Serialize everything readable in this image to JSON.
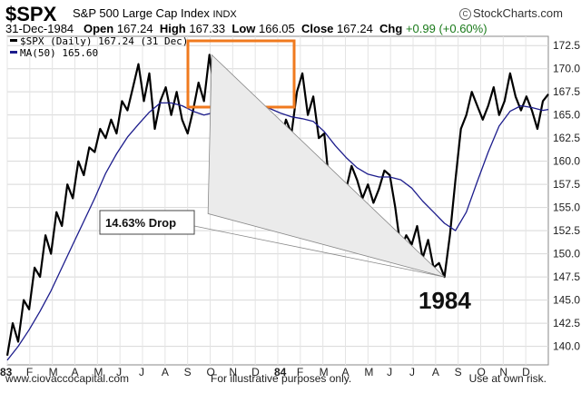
{
  "header": {
    "symbol": "$SPX",
    "name": "S&P 500 Large Cap Index",
    "exchange": "INDX",
    "brand": "StockCharts.com",
    "brand_icon": "copyright-icon",
    "date": "31-Dec-1984",
    "open_label": "Open",
    "open": "167.24",
    "high_label": "High",
    "high": "167.33",
    "low_label": "Low",
    "low": "166.05",
    "close_label": "Close",
    "close": "167.24",
    "chg_label": "Chg",
    "chg": "+0.99 (+0.60%)",
    "chg_color": "#1a7a1a"
  },
  "footer": {
    "left": "www.ciovaccocapital.com",
    "center": "For illustrative purposes only.",
    "right": "Use at own risk."
  },
  "chart_data": {
    "type": "line",
    "legend": [
      {
        "label": "$SPX (Daily) 167.24 (31 Dec)",
        "color": "#000000"
      },
      {
        "label": "MA(50) 165.60",
        "color": "#1c1c8c"
      }
    ],
    "y_ticks": [
      "172.5",
      "170.0",
      "167.5",
      "165.0",
      "162.5",
      "160.0",
      "157.5",
      "155.0",
      "152.5",
      "150.0",
      "147.5",
      "145.0",
      "142.5",
      "140.0"
    ],
    "ylim": [
      138.0,
      173.5
    ],
    "x_ticks": [
      "83",
      "F",
      "M",
      "A",
      "M",
      "J",
      "J",
      "A",
      "S",
      "O",
      "N",
      "D",
      "84",
      "F",
      "M",
      "A",
      "M",
      "J",
      "J",
      "A",
      "S",
      "O",
      "N",
      "D"
    ],
    "grid": true,
    "annotations": {
      "drop_label": "14.63% Drop",
      "year_label": "1984",
      "highlight_box_color": "#f07a1e"
    },
    "series": [
      {
        "name": "$SPX (Daily)",
        "color": "#000000",
        "x": [
          0,
          5,
          10,
          15,
          20,
          25,
          30,
          35,
          40,
          45,
          50,
          55,
          60,
          65,
          70,
          75,
          80,
          85,
          90,
          95,
          100,
          105,
          110,
          115,
          120,
          125,
          130,
          135,
          140,
          145,
          150,
          155,
          160,
          165,
          170,
          175,
          180,
          185,
          190,
          195,
          200,
          205,
          210,
          215,
          220,
          225,
          230,
          235,
          240,
          245,
          250,
          255,
          260,
          265,
          270,
          275,
          280,
          285,
          290,
          295,
          300,
          305,
          310,
          315,
          320,
          325,
          330,
          335,
          340,
          345,
          350,
          355,
          360,
          365,
          370,
          375,
          380,
          385,
          390,
          395,
          400,
          405,
          410,
          415,
          420,
          425,
          430,
          435,
          440,
          445,
          450,
          455,
          460,
          465,
          470,
          475,
          480,
          485,
          490,
          495
        ],
        "values": [
          139.0,
          142.5,
          140.5,
          145.0,
          144.0,
          148.5,
          147.5,
          152.0,
          150.0,
          154.5,
          153.0,
          157.5,
          156.0,
          160.0,
          158.5,
          161.5,
          161.0,
          163.5,
          162.5,
          164.5,
          163.0,
          166.5,
          165.5,
          168.0,
          170.5,
          166.5,
          169.5,
          163.5,
          166.5,
          168.0,
          165.0,
          167.5,
          164.5,
          163.0,
          165.5,
          168.5,
          166.5,
          171.5,
          167.0,
          169.5,
          166.0,
          164.5,
          166.5,
          165.0,
          163.0,
          165.5,
          166.5,
          163.5,
          165.0,
          164.5,
          162.0,
          164.5,
          163.0,
          167.5,
          169.5,
          165.0,
          167.0,
          162.5,
          163.0,
          157.0,
          155.5,
          158.0,
          157.0,
          159.5,
          158.0,
          156.0,
          157.5,
          155.5,
          157.0,
          159.0,
          158.5,
          155.0,
          150.5,
          152.0,
          151.0,
          153.0,
          149.5,
          151.5,
          148.5,
          149.0,
          147.5,
          152.0,
          158.0,
          163.5,
          165.0,
          167.5,
          166.0,
          164.5,
          166.0,
          168.0,
          165.0,
          166.5,
          169.5,
          167.0,
          165.5,
          167.0,
          165.5,
          163.5,
          166.5,
          167.24
        ]
      },
      {
        "name": "MA(50)",
        "color": "#1c1c8c",
        "x": [
          0,
          10,
          20,
          30,
          40,
          50,
          60,
          70,
          80,
          90,
          100,
          110,
          120,
          130,
          140,
          150,
          160,
          170,
          180,
          190,
          200,
          210,
          220,
          230,
          240,
          250,
          260,
          270,
          280,
          290,
          300,
          310,
          320,
          330,
          340,
          350,
          360,
          370,
          380,
          390,
          400,
          410,
          420,
          430,
          440,
          450,
          460,
          470,
          480,
          490,
          495
        ],
        "values": [
          138.5,
          140.0,
          141.8,
          143.8,
          146.0,
          148.5,
          151.0,
          153.5,
          156.0,
          158.7,
          160.8,
          162.6,
          164.0,
          165.3,
          166.3,
          166.3,
          166.0,
          165.4,
          165.0,
          165.3,
          166.0,
          166.2,
          166.3,
          166.1,
          165.7,
          165.2,
          164.8,
          164.6,
          164.3,
          163.2,
          161.7,
          160.4,
          159.3,
          158.6,
          158.3,
          158.3,
          158.0,
          157.1,
          155.7,
          154.5,
          153.3,
          152.5,
          154.5,
          157.8,
          161.0,
          163.8,
          165.4,
          166.0,
          165.8,
          165.5,
          165.6
        ]
      }
    ],
    "drop_reference": {
      "peak": {
        "x": 187,
        "y": 171.5
      },
      "trough": {
        "x": 400,
        "y": 147.5
      }
    }
  }
}
